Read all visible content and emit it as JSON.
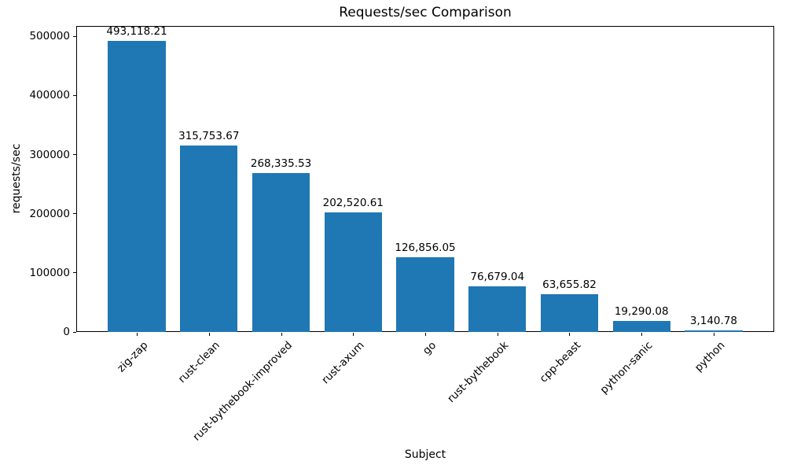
{
  "chart_data": {
    "type": "bar",
    "title": "Requests/sec Comparison",
    "xlabel": "Subject",
    "ylabel": "requests/sec",
    "categories": [
      "zig-zap",
      "rust-clean",
      "rust-bythebook-improved",
      "rust-axum",
      "go",
      "rust-bythebook",
      "cpp-beast",
      "python-sanic",
      "python"
    ],
    "values": [
      493118.21,
      315753.67,
      268335.53,
      202520.61,
      126856.05,
      76679.04,
      63655.82,
      19290.08,
      3140.78
    ],
    "value_labels": [
      "493,118.21",
      "315,753.67",
      "268,335.53",
      "202,520.61",
      "126,856.05",
      "76,679.04",
      "63,655.82",
      "19,290.08",
      "3,140.78"
    ],
    "yticks": [
      0,
      100000,
      200000,
      300000,
      400000,
      500000
    ],
    "ytick_labels": [
      "0",
      "100000",
      "200000",
      "300000",
      "400000",
      "500000"
    ],
    "ylim": [
      0,
      517774
    ],
    "xtick_rotation": 45,
    "grid": false,
    "legend": null,
    "bar_color": "#1f77b4",
    "background_color": "#ffffff",
    "text_color": "#000000"
  }
}
